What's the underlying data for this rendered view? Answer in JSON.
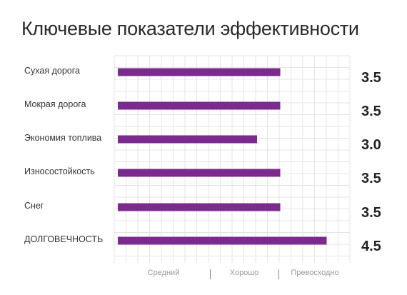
{
  "chart_data": {
    "type": "bar",
    "orientation": "horizontal",
    "title": "Ключевые показатели эффективности",
    "categories": [
      "Сухая дорога",
      "Мокрая дорога",
      "Экономия топлива",
      "Износостойкость",
      "Снег",
      "ДОЛГОВЕЧНОСТЬ"
    ],
    "values": [
      3.5,
      3.5,
      3.0,
      3.5,
      3.5,
      4.5
    ],
    "value_labels": [
      "3.5",
      "3.5",
      "3.0",
      "3.5",
      "3.5",
      "4.5"
    ],
    "xlim": [
      0,
      5
    ],
    "x_tick_labels": [
      "Средний",
      "Хорошо",
      "Превосходно"
    ],
    "grid": true,
    "bar_color": "#7b2a8e",
    "grid_color": "#e4e4e4"
  }
}
